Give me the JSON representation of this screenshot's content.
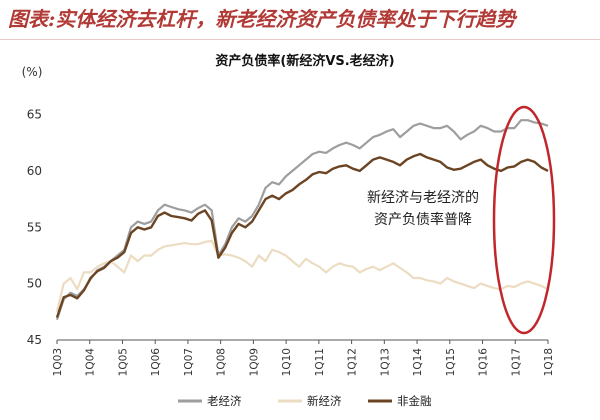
{
  "page_title": "图表:实体经济去杠杆，新老经济资产负债率处于下行趋势",
  "colors": {
    "old": "#9e9e9e",
    "new": "#ecdcc2",
    "nonfin": "#6b4423",
    "highlight": "#c0272d",
    "title": "#b23a36"
  },
  "chart_data": {
    "type": "line",
    "title": "资产负债率(新经济VS.老经济)",
    "unit_label": "(%)",
    "ylim": [
      45,
      67
    ],
    "yticks": [
      45,
      50,
      55,
      60,
      65
    ],
    "grid": false,
    "legend_position": "bottom-center",
    "annotation": [
      "新经济与老经济的",
      "资产负债率普降"
    ],
    "x_tick_labels": [
      "1Q03",
      "1Q04",
      "1Q05",
      "1Q06",
      "1Q07",
      "1Q08",
      "1Q09",
      "1Q10",
      "1Q11",
      "1Q12",
      "1Q13",
      "1Q14",
      "1Q15",
      "1Q16",
      "1Q17",
      "1Q18"
    ],
    "series": [
      {
        "name": "老经济",
        "values": [
          46.8,
          48.6,
          49.2,
          48.9,
          49.5,
          50.4,
          51.2,
          51.5,
          52,
          52.5,
          53,
          55,
          55.5,
          55.3,
          55.5,
          56.5,
          57,
          56.8,
          56.6,
          56.5,
          56.3,
          56.7,
          57,
          56.5,
          52.5,
          53.5,
          55,
          55.8,
          55.5,
          56,
          57,
          58.5,
          59,
          58.8,
          59.5,
          60,
          60.5,
          61,
          61.5,
          61.7,
          61.6,
          62,
          62.3,
          62.5,
          62.3,
          62,
          62.5,
          63,
          63.2,
          63.5,
          63.7,
          63,
          63.5,
          64,
          64.2,
          64,
          63.8,
          63.8,
          64,
          63.5,
          62.8,
          63.2,
          63.5,
          64,
          63.8,
          63.5,
          63.5,
          63.8,
          63.8,
          64.5,
          64.5,
          64.3,
          64.2,
          64
        ]
      },
      {
        "name": "新经济",
        "values": [
          47.5,
          50,
          50.5,
          49.5,
          51,
          51,
          51.5,
          51.8,
          52,
          51.5,
          51,
          52.5,
          52,
          52.5,
          52.5,
          53,
          53.3,
          53.4,
          53.5,
          53.6,
          53.5,
          53.5,
          53.7,
          53.8,
          52.5,
          52.6,
          52.5,
          52.3,
          52,
          51.5,
          52.5,
          52,
          53,
          52.8,
          52.5,
          52,
          51.5,
          52.2,
          51.8,
          51.5,
          51,
          51.5,
          51.8,
          51.6,
          51.5,
          51,
          51.3,
          51.5,
          51.2,
          51.5,
          51.8,
          51.4,
          51,
          50.5,
          50.5,
          50.3,
          50.2,
          50,
          50.5,
          50.2,
          50,
          49.8,
          49.6,
          50,
          49.8,
          49.6,
          49.5,
          49.8,
          49.7,
          50,
          50.2,
          50,
          49.8,
          49.5
        ]
      },
      {
        "name": "非金融",
        "values": [
          47,
          48.8,
          49,
          48.7,
          49.4,
          50.5,
          51.1,
          51.4,
          52,
          52.3,
          52.8,
          54.5,
          55,
          54.8,
          55,
          56,
          56.3,
          56,
          55.9,
          55.8,
          55.6,
          56.2,
          56.5,
          55.6,
          52.3,
          53.2,
          54.5,
          55.3,
          55,
          55.5,
          56.5,
          57.5,
          57.8,
          57.5,
          58,
          58.3,
          58.8,
          59.2,
          59.7,
          59.9,
          59.8,
          60.2,
          60.4,
          60.5,
          60.2,
          60,
          60.5,
          61,
          61.2,
          61,
          60.8,
          60.5,
          61,
          61.3,
          61.5,
          61.2,
          61,
          60.8,
          60.3,
          60.1,
          60.2,
          60.5,
          60.8,
          61,
          60.5,
          60.2,
          60,
          60.3,
          60.4,
          60.8,
          61,
          60.8,
          60.3,
          60
        ]
      }
    ]
  }
}
